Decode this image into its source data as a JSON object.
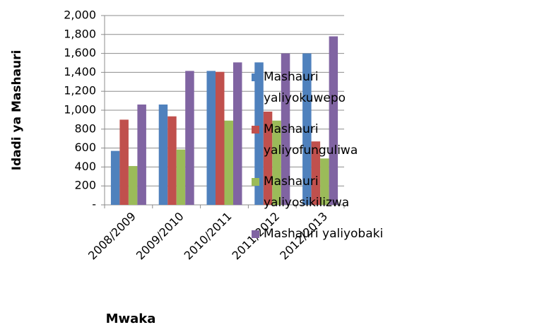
{
  "chart_data": {
    "type": "bar",
    "x_label": "Mwaka",
    "y_label": "Idadi ya Mashauri",
    "categories": [
      "2008/2009",
      "2009/2010",
      "2010/2011",
      "2011/2012",
      "2012/2013"
    ],
    "series": [
      {
        "name": "Mashauri yaliyokuwepo",
        "color": "#4f81bd",
        "values": [
          570,
          1060,
          1415,
          1505,
          1600
        ]
      },
      {
        "name": "Mashauri yaliyofunguliwa",
        "color": "#c0504d",
        "values": [
          900,
          935,
          1405,
          985,
          670
        ]
      },
      {
        "name": "Mashauri yaliyosikilizwa",
        "color": "#9bbb59",
        "values": [
          410,
          585,
          890,
          890,
          490
        ]
      },
      {
        "name": "Mashauri yaliyobaki",
        "color": "#8064a2",
        "values": [
          1060,
          1415,
          1505,
          1600,
          1780
        ]
      }
    ],
    "ylim": [
      0,
      2000
    ],
    "yticks": [
      {
        "value": 0,
        "label": "-"
      },
      200,
      400,
      600,
      800,
      {
        "value": 1000,
        "label": "1,000"
      },
      {
        "value": 1200,
        "label": "1,200"
      },
      {
        "value": 1400,
        "label": "1,400"
      },
      {
        "value": 1600,
        "label": "1,600"
      },
      {
        "value": 1800,
        "label": "1,800"
      },
      {
        "value": 2000,
        "label": "2,000"
      }
    ],
    "grid": true,
    "legend": "right"
  }
}
